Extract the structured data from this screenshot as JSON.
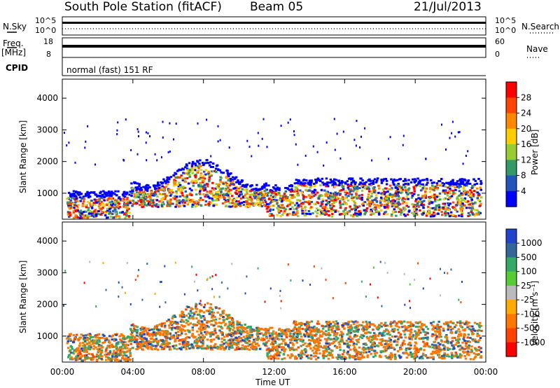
{
  "header": {
    "station": "South Pole Station (fitACF)",
    "beam": "Beam 05",
    "date": "21/Jul/2013"
  },
  "top_panels": {
    "nsky_label": "N.Sky",
    "nsky_ticks": [
      "10^5",
      "10^0"
    ],
    "nsearch_label": "N.Search",
    "nsearch_ticks": [
      "10^5",
      "10^0"
    ],
    "freq_label": "Freq.",
    "freq_unit": "[MHz]",
    "freq_ticks": [
      "18",
      "8"
    ],
    "nave_label": "Nave",
    "nave_ticks": [
      "60",
      "0"
    ],
    "cpid_label": "CPID",
    "cpid_text": "normal (fast) 151 RF"
  },
  "chart_data": [
    {
      "type": "heatmap",
      "name": "power",
      "ylabel": "Slant Range [km]",
      "xlabel": "",
      "x_ticks": [
        "00:00",
        "04:00",
        "08:00",
        "12:00",
        "16:00",
        "20:00",
        "00:00"
      ],
      "y_ticks": [
        1000,
        2000,
        3000,
        4000
      ],
      "ylim": [
        180,
        4600
      ],
      "xlim_hours": [
        0,
        24
      ],
      "colorbar_label": "Power [dB]",
      "colorbar_ticks": [
        "28",
        "24",
        "20",
        "16",
        "12",
        "8",
        "4"
      ],
      "colorbar_colors": [
        "#ff0000",
        "#ff4400",
        "#ff8800",
        "#ffcc00",
        "#99cc33",
        "#339966",
        "#2255bb",
        "#0000ff"
      ]
    },
    {
      "type": "heatmap",
      "name": "velocity",
      "ylabel": "Slant Range [km]",
      "xlabel": "Time UT",
      "x_ticks": [
        "00:00",
        "04:00",
        "08:00",
        "12:00",
        "16:00",
        "20:00",
        "00:00"
      ],
      "y_ticks": [
        1000,
        2000,
        3000,
        4000
      ],
      "ylim": [
        180,
        4600
      ],
      "xlim_hours": [
        0,
        24
      ],
      "colorbar_label": "Velocity [m s⁻¹]",
      "colorbar_ticks": [
        "1000",
        "500",
        "100",
        "25",
        "-25",
        "-100",
        "-500",
        "-1000"
      ],
      "colorbar_colors": [
        "#2244cc",
        "#336699",
        "#33aa66",
        "#55cc33",
        "#bbbbbb",
        "#ffaa00",
        "#ff7700",
        "#ff4400",
        "#ff0000"
      ]
    }
  ]
}
